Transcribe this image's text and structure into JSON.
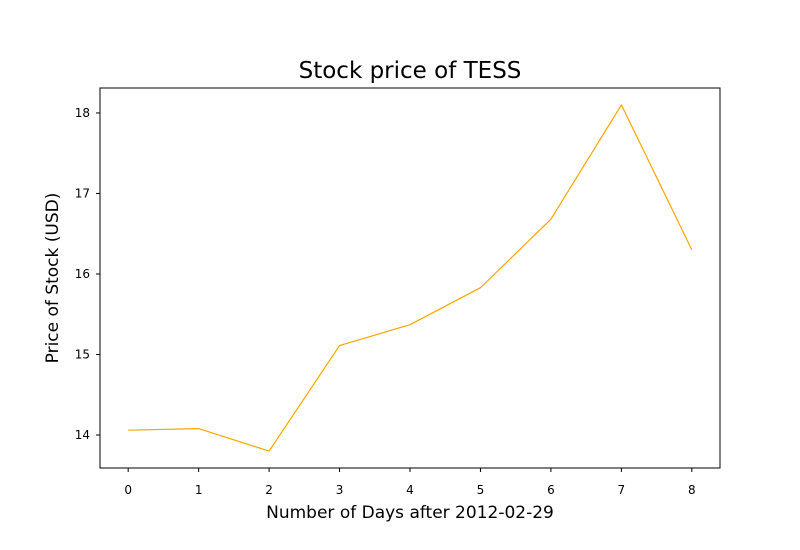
{
  "chart_data": {
    "type": "line",
    "title": "Stock price of TESS",
    "xlabel": "Number of Days after 2012-02-29",
    "ylabel": "Price of Stock (USD)",
    "x": [
      0,
      1,
      2,
      3,
      4,
      5,
      6,
      7,
      8
    ],
    "series": [
      {
        "values": [
          14.06,
          14.08,
          13.8,
          15.11,
          15.37,
          15.83,
          16.68,
          18.1,
          16.3
        ],
        "color": "#ffa500"
      }
    ],
    "xticks": [
      0,
      1,
      2,
      3,
      4,
      5,
      6,
      7,
      8
    ],
    "yticks": [
      14,
      15,
      16,
      17,
      18
    ],
    "xlim": [
      -0.4,
      8.4
    ],
    "ylim": [
      13.59,
      18.31
    ],
    "grid": false,
    "legend": "none"
  }
}
